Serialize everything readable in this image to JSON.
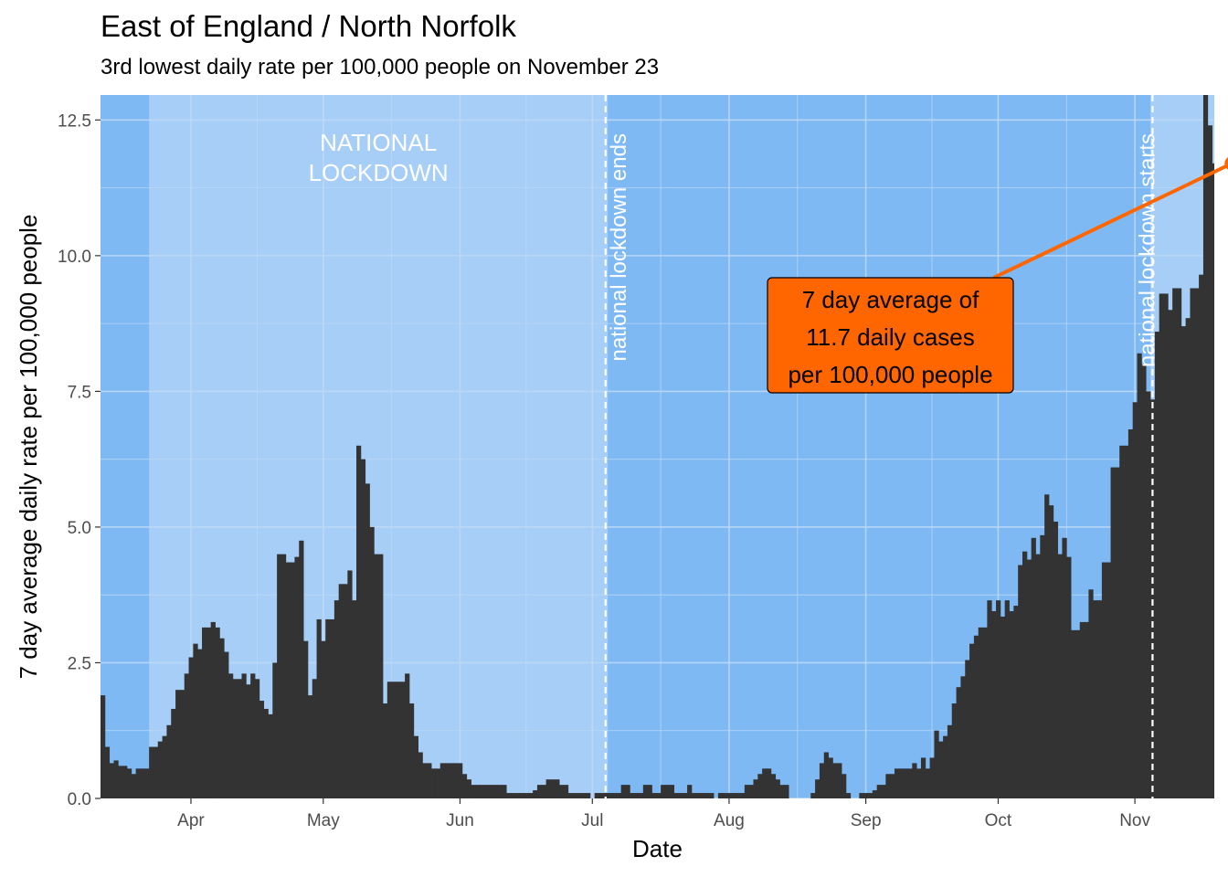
{
  "chart_data": {
    "type": "bar",
    "title": "East of England / North Norfolk",
    "subtitle": "3rd lowest daily rate per 100,000 people on November 23",
    "xlabel": "Date",
    "ylabel": "7 day average daily rate per 100,000 people",
    "start_date": "2020-03-12",
    "ylim": [
      0,
      12.96
    ],
    "yticks": [
      0,
      2.5,
      5,
      7.5,
      10,
      12.5
    ],
    "ytick_labels": [
      "0.0",
      "2.5",
      "5.0",
      "7.5",
      "10.0",
      "12.5"
    ],
    "xticks": [
      {
        "date": "2020-04-01",
        "label": "Apr"
      },
      {
        "date": "2020-05-01",
        "label": "May"
      },
      {
        "date": "2020-06-01",
        "label": "Jun"
      },
      {
        "date": "2020-07-01",
        "label": "Jul"
      },
      {
        "date": "2020-08-01",
        "label": "Aug"
      },
      {
        "date": "2020-09-01",
        "label": "Sep"
      },
      {
        "date": "2020-10-01",
        "label": "Oct"
      },
      {
        "date": "2020-11-01",
        "label": "Nov"
      }
    ],
    "values": [
      1.9,
      0.95,
      0.65,
      0.7,
      0.6,
      0.6,
      0.55,
      0.45,
      0.55,
      0.55,
      0.55,
      0.95,
      0.95,
      1.05,
      1.15,
      1.35,
      1.65,
      2.0,
      2.0,
      2.3,
      2.6,
      2.85,
      2.75,
      3.15,
      3.15,
      3.25,
      3.15,
      2.95,
      2.7,
      2.3,
      2.2,
      2.2,
      2.3,
      2.1,
      2.3,
      2.2,
      1.8,
      1.65,
      1.55,
      2.5,
      4.5,
      4.5,
      4.35,
      4.35,
      4.45,
      4.75,
      2.9,
      1.9,
      2.2,
      3.3,
      2.9,
      3.3,
      3.3,
      3.65,
      3.95,
      3.95,
      4.2,
      3.65,
      6.5,
      6.25,
      5.8,
      5.0,
      4.5,
      4.5,
      1.75,
      2.15,
      2.15,
      2.15,
      2.15,
      2.3,
      1.75,
      1.15,
      0.85,
      0.65,
      0.65,
      0.55,
      0.55,
      0.65,
      0.65,
      0.65,
      0.65,
      0.65,
      0.45,
      0.35,
      0.25,
      0.25,
      0.25,
      0.25,
      0.25,
      0.25,
      0.25,
      0.25,
      0.1,
      0.1,
      0.1,
      0.1,
      0.1,
      0.1,
      0.15,
      0.25,
      0.25,
      0.35,
      0.35,
      0.35,
      0.25,
      0.25,
      0.1,
      0.1,
      0.1,
      0.1,
      0.1,
      0,
      0.1,
      0.1,
      0.1,
      0.1,
      0.1,
      0.1,
      0.25,
      0.25,
      0.1,
      0.1,
      0.1,
      0.25,
      0.25,
      0.1,
      0.1,
      0.25,
      0.25,
      0.25,
      0.1,
      0.1,
      0.1,
      0.25,
      0.1,
      0.1,
      0.1,
      0.1,
      0.1,
      0,
      0.1,
      0.1,
      0.1,
      0.1,
      0.1,
      0.1,
      0.25,
      0.25,
      0.35,
      0.45,
      0.55,
      0.55,
      0.45,
      0.35,
      0.25,
      0.25,
      0,
      0,
      0,
      0,
      0,
      0.1,
      0.35,
      0.65,
      0.85,
      0.75,
      0.65,
      0.65,
      0.45,
      0.1,
      0,
      0,
      0.1,
      0.1,
      0.1,
      0.15,
      0.25,
      0.25,
      0.45,
      0.45,
      0.55,
      0.55,
      0.55,
      0.55,
      0.65,
      0.55,
      0.75,
      0.55,
      0.75,
      1.25,
      1.05,
      1.15,
      1.35,
      1.75,
      2.05,
      2.25,
      2.55,
      2.85,
      3.0,
      3.15,
      3.15,
      3.65,
      3.45,
      3.65,
      3.35,
      3.65,
      3.45,
      3.55,
      4.3,
      4.55,
      4.4,
      4.8,
      4.5,
      4.85,
      5.6,
      5.4,
      5.1,
      4.5,
      4.8,
      4.45,
      3.1,
      3.1,
      3.25,
      3.25,
      3.85,
      3.65,
      3.65,
      4.35,
      4.35,
      6.1,
      6.1,
      6.5,
      6.5,
      6.8,
      7.3,
      8.2,
      8.0,
      7.5,
      7.35,
      8.6,
      9.3,
      9.3,
      9.0,
      9.4,
      9.4,
      8.7,
      8.85,
      9.4,
      9.4,
      9.65,
      13.2,
      12.4,
      11.7
    ],
    "shaded_regions": [
      {
        "start": "2020-03-23",
        "end": "2020-07-04",
        "label": "NATIONAL LOCKDOWN"
      },
      {
        "start": "2020-11-05",
        "end": "2020-11-23"
      }
    ],
    "vlines": [
      {
        "date": "2020-07-04",
        "label": "national lockdown ends"
      },
      {
        "date": "2020-11-05",
        "label": "national lockdown starts"
      }
    ],
    "highlight_point": {
      "date": "2020-11-23",
      "value": 11.7
    },
    "annotation": [
      "7 day average of",
      "11.7 daily cases",
      "per 100,000 people"
    ],
    "colors": {
      "background": "#7fb9f4",
      "lockdown_fill": "#a6cef6",
      "grid": "#bdd9f7",
      "bars": "#333333",
      "accent": "#ff6600",
      "vline": "#ffffff"
    }
  }
}
